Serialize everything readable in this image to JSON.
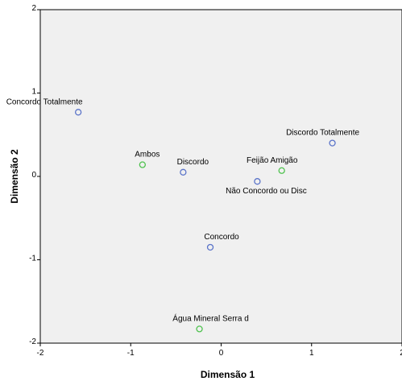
{
  "chart_data": {
    "type": "scatter",
    "title": "",
    "xlabel": "Dimensão 1",
    "ylabel": "Dimensão 2",
    "xlim": [
      -2,
      2
    ],
    "ylim": [
      -2,
      2
    ],
    "xticks": [
      "-2",
      "-1",
      "0",
      "1",
      "2"
    ],
    "yticks": [
      "-2",
      "-1",
      "0",
      "1",
      "2"
    ],
    "grid": false,
    "background_color": "#f0f0f0",
    "series": [
      {
        "color": "#5b74c9",
        "points": [
          {
            "label": "Concordo Totalmente",
            "x": -1.58,
            "y": 0.77
          },
          {
            "label": "Discordo Totalmente",
            "x": 1.23,
            "y": 0.4
          },
          {
            "label": "Discordo",
            "x": -0.42,
            "y": 0.05
          },
          {
            "label": "Não Concordo ou Disc",
            "x": 0.4,
            "y": -0.06
          },
          {
            "label": "Concordo",
            "x": -0.12,
            "y": -0.85
          }
        ]
      },
      {
        "color": "#4fc24f",
        "points": [
          {
            "label": "Ambos",
            "x": -0.87,
            "y": 0.14
          },
          {
            "label": "Feijão Amigão",
            "x": 0.67,
            "y": 0.07
          },
          {
            "label": "Água Mineral Serra d",
            "x": -0.24,
            "y": -1.83
          }
        ]
      }
    ]
  }
}
